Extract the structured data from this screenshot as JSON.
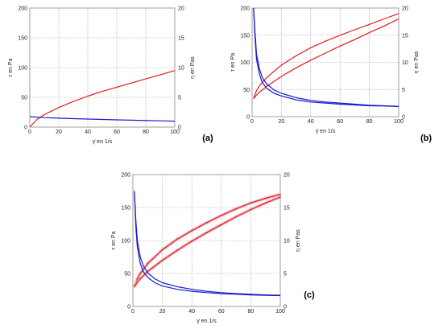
{
  "colors": {
    "tau": "#e41a1c",
    "eta": "#1a1acc",
    "tau_band": "#f4b6c2",
    "tau_marker": "#7a4a1a"
  },
  "chart_data": [
    {
      "type": "line",
      "panel_label": "(a)",
      "xlabel": "γ̇ en 1/s",
      "ylabel_left": "τ en Pa",
      "ylabel_right": "η en Pas",
      "xlim": [
        0,
        100
      ],
      "ylim_left": [
        0,
        200
      ],
      "ylim_right": [
        0,
        20
      ],
      "x_ticks": [
        "0",
        "20",
        "40",
        "60",
        "80",
        "100"
      ],
      "y_left_ticks": [
        "0",
        "50",
        "100",
        "150",
        "200"
      ],
      "y_right_ticks": [
        "0",
        "5",
        "10",
        "15",
        "20"
      ],
      "grid": true,
      "series": [
        {
          "axis": "left",
          "color": "tau",
          "x": [
            0,
            5,
            10,
            20,
            30,
            40,
            50,
            60,
            70,
            80,
            90,
            100
          ],
          "y": [
            0,
            13,
            21,
            33,
            43,
            52,
            60,
            67,
            74,
            81,
            88,
            95
          ]
        },
        {
          "axis": "right",
          "color": "eta",
          "x": [
            0,
            10,
            20,
            30,
            40,
            50,
            60,
            70,
            80,
            90,
            100
          ],
          "y": [
            1.75,
            1.6,
            1.5,
            1.42,
            1.35,
            1.28,
            1.22,
            1.16,
            1.1,
            1.05,
            1.0
          ]
        }
      ]
    },
    {
      "type": "line",
      "panel_label": "(b)",
      "xlabel": "γ̇ en 1/s",
      "ylabel_left": "τ en Pa",
      "ylabel_right": "η en Pas",
      "xlim": [
        0,
        100
      ],
      "ylim_left": [
        0,
        200
      ],
      "ylim_right": [
        0,
        20
      ],
      "x_ticks": [
        "0",
        "20",
        "40",
        "60",
        "80",
        "100"
      ],
      "y_left_ticks": [
        "0",
        "50",
        "100",
        "150",
        "200"
      ],
      "y_right_ticks": [
        "0",
        "5",
        "10",
        "15",
        "20"
      ],
      "grid": true,
      "series": [
        {
          "axis": "left",
          "color": "tau",
          "x": [
            1,
            3,
            5,
            10,
            20,
            30,
            40,
            50,
            60,
            70,
            80,
            90,
            100
          ],
          "y": [
            33,
            48,
            57,
            72,
            95,
            112,
            127,
            139,
            150,
            160,
            170,
            180,
            190
          ]
        },
        {
          "axis": "left",
          "color": "tau",
          "x": [
            1,
            3,
            5,
            10,
            20,
            30,
            40,
            50,
            60,
            70,
            80,
            90,
            100
          ],
          "y": [
            33,
            40,
            45,
            56,
            74,
            90,
            104,
            117,
            130,
            142,
            155,
            167,
            180
          ]
        },
        {
          "axis": "right",
          "color": "eta",
          "x": [
            1,
            2,
            3,
            5,
            7,
            10,
            15,
            20,
            30,
            40,
            50,
            60,
            70,
            80,
            90,
            100
          ],
          "y": [
            20,
            15.5,
            11.5,
            8.8,
            7.2,
            6.0,
            4.9,
            4.3,
            3.5,
            3.0,
            2.7,
            2.5,
            2.3,
            2.1,
            2.0,
            1.9
          ]
        },
        {
          "axis": "right",
          "color": "eta",
          "x": [
            1,
            2,
            3,
            5,
            7,
            10,
            15,
            20,
            30,
            40,
            50,
            60,
            70,
            80,
            90,
            100
          ],
          "y": [
            20,
            14.5,
            10.5,
            7.8,
            6.3,
            5.2,
            4.3,
            3.8,
            3.1,
            2.7,
            2.5,
            2.3,
            2.15,
            2.0,
            1.95,
            1.85
          ]
        }
      ]
    },
    {
      "type": "line",
      "panel_label": "(c)",
      "xlabel": "γ̇ en 1/s",
      "ylabel_left": "τ en Pa",
      "ylabel_right": "η en Pas",
      "xlim": [
        0,
        100
      ],
      "ylim_left": [
        0,
        200
      ],
      "ylim_right": [
        0,
        20
      ],
      "x_ticks": [
        "0",
        "20",
        "40",
        "60",
        "80",
        "100"
      ],
      "y_left_ticks": [
        "0",
        "50",
        "100",
        "150",
        "200"
      ],
      "y_right_ticks": [
        "0",
        "5",
        "10",
        "15",
        "20"
      ],
      "grid": true,
      "series": [
        {
          "axis": "left",
          "color": "tau",
          "x": [
            1,
            3,
            5,
            10,
            20,
            30,
            40,
            50,
            60,
            70,
            80,
            90,
            100
          ],
          "y": [
            30,
            42,
            50,
            65,
            86,
            102,
            115,
            127,
            138,
            148,
            157,
            164,
            170
          ]
        },
        {
          "axis": "left",
          "color": "tau",
          "x": [
            1,
            3,
            5,
            10,
            20,
            30,
            40,
            50,
            60,
            70,
            80,
            90,
            100
          ],
          "y": [
            30,
            37,
            42,
            53,
            70,
            85,
            99,
            112,
            124,
            136,
            147,
            157,
            166
          ]
        },
        {
          "axis": "right",
          "color": "eta",
          "x": [
            1,
            2,
            3,
            5,
            7,
            10,
            15,
            20,
            30,
            40,
            50,
            60,
            70,
            80,
            90,
            100
          ],
          "y": [
            17.5,
            13,
            10,
            7.5,
            6.2,
            5.1,
            4.2,
            3.6,
            3.0,
            2.6,
            2.3,
            2.1,
            1.95,
            1.85,
            1.75,
            1.7
          ]
        },
        {
          "axis": "right",
          "color": "eta",
          "x": [
            1,
            2,
            3,
            5,
            7,
            10,
            15,
            20,
            30,
            40,
            50,
            60,
            70,
            80,
            90,
            100
          ],
          "y": [
            17.5,
            12,
            9,
            6.5,
            5.3,
            4.4,
            3.6,
            3.1,
            2.6,
            2.3,
            2.1,
            1.95,
            1.85,
            1.75,
            1.7,
            1.65
          ]
        }
      ]
    }
  ]
}
